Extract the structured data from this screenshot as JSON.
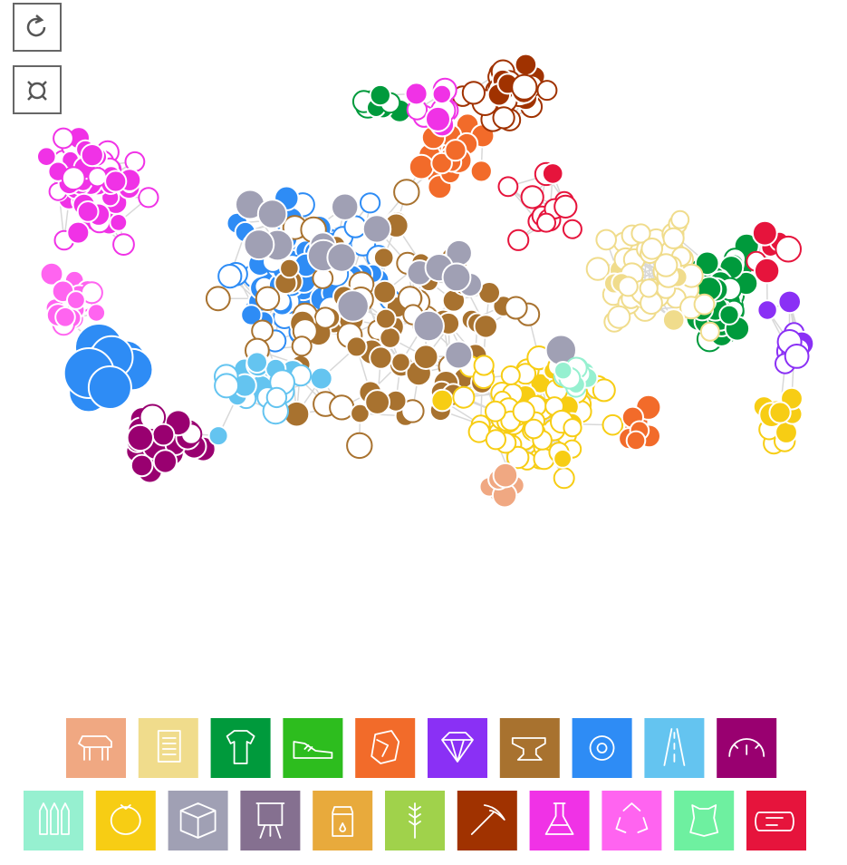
{
  "legend": [
    {
      "color": "#f0a882"
    },
    {
      "color": "#f0dc8c"
    },
    {
      "color": "#009a3c"
    },
    {
      "color": "#2dbd1e"
    },
    {
      "color": "#f26b2a"
    },
    {
      "color": "#8a30f5"
    },
    {
      "color": "#a8722f"
    },
    {
      "color": "#2e8cf5"
    },
    {
      "color": "#64c4f0"
    },
    {
      "color": "#990070"
    },
    {
      "color": "#96f0d0"
    },
    {
      "color": "#f7cd14"
    },
    {
      "color": "#a0a0b4"
    },
    {
      "color": "#857090"
    },
    {
      "color": "#e8aa3c"
    },
    {
      "color": "#a0d24b"
    },
    {
      "color": "#a03200"
    },
    {
      "color": "#f032e6"
    },
    {
      "color": "#ff64f0"
    },
    {
      "color": "#6ef0a0"
    },
    {
      "color": "#e6143c"
    }
  ]
}
